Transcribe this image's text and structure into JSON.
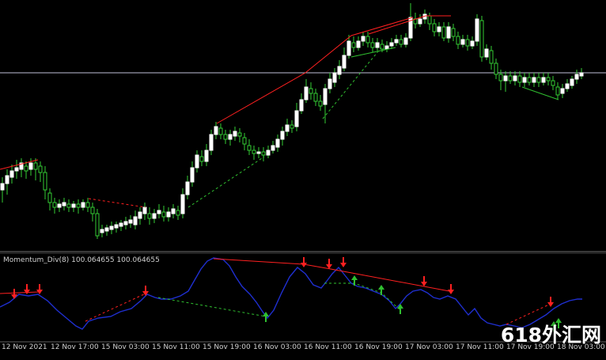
{
  "indicator": {
    "name": "Momentum_Div(8)",
    "value1": "100.064655",
    "value2": "100.064655"
  },
  "time_axis": [
    "12 Nov 2021",
    "12 Nov 17:00",
    "15 Nov 03:00",
    "15 Nov 11:00",
    "15 Nov 19:00",
    "16 Nov 03:00",
    "16 Nov 11:00",
    "16 Nov 19:00",
    "17 Nov 03:00",
    "17 Nov 11:00",
    "17 Nov 19:00",
    "18 Nov 03:00"
  ],
  "watermark": "618外汇网",
  "colors": {
    "background": "#000000",
    "bull_candle": "#ffffff",
    "bear_candle": "#000000",
    "wick": "#33cc33",
    "momentum_line": "#1f2fd0",
    "bearish_divergence": "#ff2020",
    "bullish_divergence": "#30c030",
    "bid_line": "#c0c0d8",
    "separator": "#606060"
  },
  "arrows": {
    "down": [
      "red-down-arrow",
      "red-down-arrow",
      "red-down-arrow",
      "red-down-arrow",
      "red-down-arrow",
      "red-down-arrow",
      "red-down-arrow",
      "red-down-arrow",
      "red-down-arrow",
      "red-down-arrow"
    ],
    "up": [
      "green-up-arrow",
      "green-up-arrow",
      "green-up-arrow",
      "green-up-arrow",
      "green-up-arrow",
      "green-up-arrow"
    ]
  }
}
